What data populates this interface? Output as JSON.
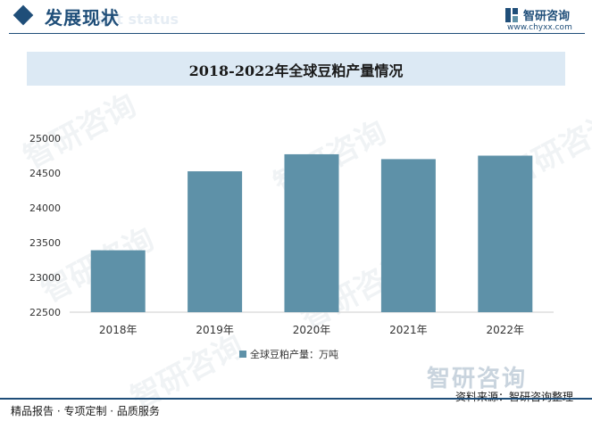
{
  "header": {
    "section_title": "发展现状",
    "section_ghost": "ent status",
    "logo_text": "智研咨询",
    "logo_url": "www.chyxx.com"
  },
  "watermark": {
    "text": "智研咨询"
  },
  "footer": {
    "left_text": "精品报告 · 专项定制 · 品质服务",
    "source_text": "资料来源：智研咨询整理"
  },
  "colors": {
    "bar": "#5e91a8",
    "brand": "#1f4e79",
    "title_band": "#dce9f4"
  },
  "chart_data": {
    "type": "bar",
    "title": "2018-2022年全球豆粕产量情况",
    "categories": [
      "2018年",
      "2019年",
      "2020年",
      "2021年",
      "2022年"
    ],
    "series": [
      {
        "name": "全球豆粕产量：万吨",
        "values": [
          23390,
          24525,
          24770,
          24700,
          24750
        ]
      }
    ],
    "ylim": [
      22500,
      25000
    ],
    "yticks": [
      22500,
      23000,
      23500,
      24000,
      24500,
      25000
    ],
    "grid": false,
    "legend": "bottom"
  }
}
